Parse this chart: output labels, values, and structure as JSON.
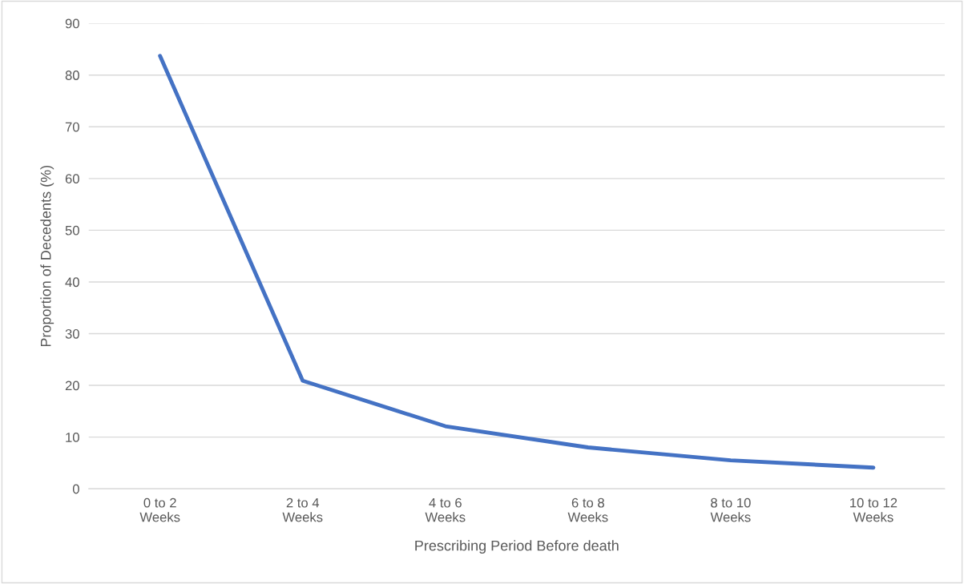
{
  "chart_data": {
    "type": "line",
    "xlabel": "Prescribing Period Before death",
    "ylabel": "Proportion of Decedents (%)",
    "categories": [
      "0 to 2\nWeeks",
      "2 to 4\nWeeks",
      "4 to 6\nWeeks",
      "6 to 8\nWeeks",
      "8 to 10\nWeeks",
      "10 to 12\nWeeks"
    ],
    "series": [
      {
        "color": "#4472c4",
        "values": [
          83.7,
          20.9,
          12.1,
          8.0,
          5.5,
          4.1
        ]
      }
    ],
    "ylim": [
      0,
      90
    ],
    "yticks": [
      0,
      10,
      20,
      30,
      40,
      50,
      60,
      70,
      80,
      90
    ],
    "grid": "y",
    "marker": "none",
    "line_style": "solid"
  }
}
